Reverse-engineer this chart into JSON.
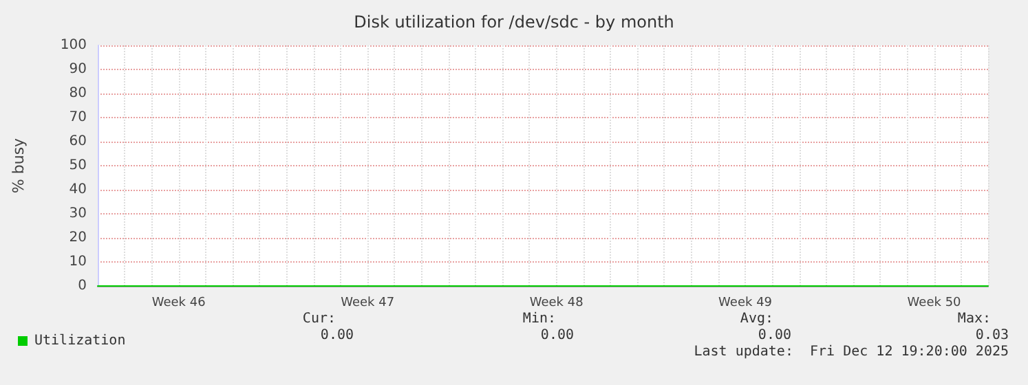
{
  "chart_data": {
    "type": "line",
    "title": "Disk utilization for /dev/sdc - by month",
    "ylabel": "% busy",
    "categories": [
      null,
      null,
      null,
      "Week 46",
      null,
      null,
      null,
      null,
      null,
      null,
      "Week 47",
      null,
      null,
      null,
      null,
      null,
      null,
      "Week 48",
      null,
      null,
      null,
      null,
      null,
      null,
      "Week 49",
      null,
      null,
      null,
      null,
      null,
      null,
      "Week 50",
      null,
      null
    ],
    "ylim": [
      0,
      100
    ],
    "yticks": [
      0,
      10,
      20,
      30,
      40,
      50,
      60,
      70,
      80,
      90,
      100
    ],
    "grid": true,
    "legend": "bottom left",
    "marker": "none",
    "line_style": "solid",
    "series": [
      {
        "name": "Utilization",
        "color": "#00cc00",
        "values": [
          0,
          0,
          0,
          0,
          0,
          0,
          0,
          0,
          0,
          0,
          0,
          0,
          0,
          0,
          0,
          0,
          0,
          0,
          0,
          0,
          0,
          0,
          0,
          0,
          0,
          0,
          0,
          0,
          0,
          0,
          0,
          0,
          0,
          0
        ]
      }
    ],
    "annotations": [
      "Cur:",
      "0.00",
      "Min:",
      "0.00",
      "Avg:",
      "0.00",
      "Max:",
      "0.03",
      "Last update:  Fri Dec 12 19:20:00 2025"
    ]
  }
}
